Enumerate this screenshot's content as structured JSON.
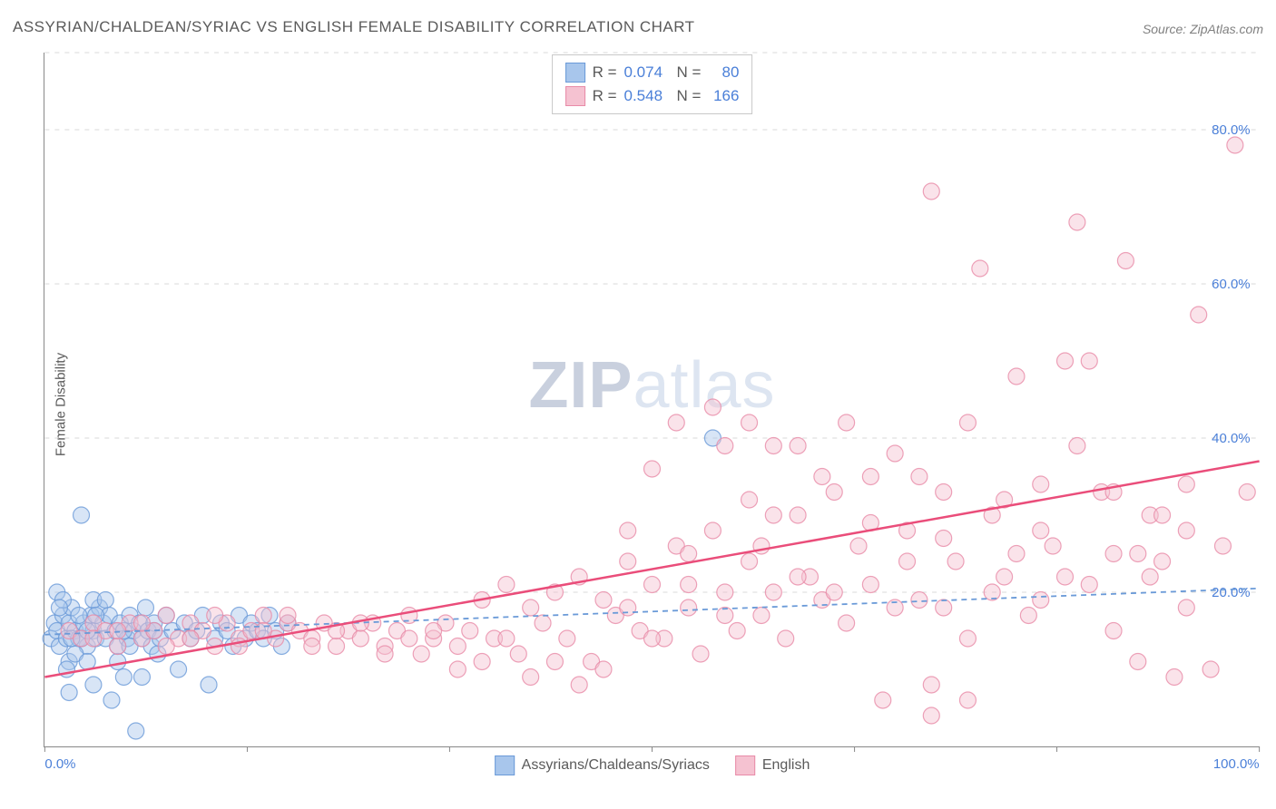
{
  "title": "ASSYRIAN/CHALDEAN/SYRIAC VS ENGLISH FEMALE DISABILITY CORRELATION CHART",
  "source": "Source: ZipAtlas.com",
  "y_axis_label": "Female Disability",
  "watermark": {
    "bold": "ZIP",
    "rest": "atlas"
  },
  "chart": {
    "type": "scatter",
    "xlim": [
      0,
      100
    ],
    "ylim": [
      0,
      90
    ],
    "x_ticks": [
      0,
      16.67,
      33.33,
      50,
      66.67,
      83.33,
      100
    ],
    "x_tick_labels": {
      "0": "0.0%",
      "100": "100.0%"
    },
    "y_gridlines": [
      20,
      40,
      60,
      80,
      90
    ],
    "y_tick_labels": {
      "20": "20.0%",
      "40": "40.0%",
      "60": "60.0%",
      "80": "80.0%"
    },
    "background_color": "#ffffff",
    "grid_color": "#d8d8d8",
    "axis_color": "#888888",
    "marker_radius": 9,
    "marker_opacity": 0.45,
    "series": [
      {
        "name": "Assyrians/Chaldeans/Syriacs",
        "fill": "#a8c6ec",
        "stroke": "#6a9ad8",
        "line_color": "#6a9ad8",
        "line_dash": "6,5",
        "line_width": 1.8,
        "r_value": "0.074",
        "n_value": "80",
        "regression": {
          "x1": 0,
          "y1": 14.5,
          "x2": 100,
          "y2": 20.5
        },
        "points": [
          [
            0.5,
            14
          ],
          [
            0.8,
            16
          ],
          [
            1,
            15
          ],
          [
            1.2,
            13
          ],
          [
            1.5,
            17
          ],
          [
            1.8,
            14
          ],
          [
            2,
            16
          ],
          [
            2.2,
            18
          ],
          [
            2.5,
            15
          ],
          [
            2.8,
            14
          ],
          [
            3,
            30
          ],
          [
            3.2,
            16
          ],
          [
            3.5,
            13
          ],
          [
            3.8,
            17
          ],
          [
            4,
            15
          ],
          [
            4.2,
            14
          ],
          [
            4.5,
            18
          ],
          [
            4.8,
            16
          ],
          [
            5,
            14
          ],
          [
            5.3,
            17
          ],
          [
            5.5,
            6
          ],
          [
            5.8,
            15
          ],
          [
            6,
            13
          ],
          [
            6.2,
            16
          ],
          [
            6.5,
            9
          ],
          [
            6.8,
            14
          ],
          [
            7,
            17
          ],
          [
            7.3,
            15
          ],
          [
            7.5,
            2
          ],
          [
            7.8,
            16
          ],
          [
            8,
            14
          ],
          [
            8.3,
            18
          ],
          [
            8.5,
            15
          ],
          [
            8.8,
            13
          ],
          [
            9,
            16
          ],
          [
            9.3,
            12
          ],
          [
            9.5,
            14
          ],
          [
            10,
            17
          ],
          [
            10.5,
            15
          ],
          [
            11,
            10
          ],
          [
            11.5,
            16
          ],
          [
            12,
            14
          ],
          [
            12.5,
            15
          ],
          [
            13,
            17
          ],
          [
            13.5,
            8
          ],
          [
            14,
            14
          ],
          [
            14.5,
            16
          ],
          [
            15,
            15
          ],
          [
            15.5,
            13
          ],
          [
            16,
            17
          ],
          [
            16.5,
            14
          ],
          [
            17,
            16
          ],
          [
            17.5,
            15
          ],
          [
            18,
            14
          ],
          [
            18.5,
            17
          ],
          [
            19,
            15
          ],
          [
            19.5,
            13
          ],
          [
            20,
            16
          ],
          [
            1,
            20
          ],
          [
            2,
            11
          ],
          [
            3,
            14
          ],
          [
            4,
            19
          ],
          [
            2.5,
            12
          ],
          [
            1.5,
            19
          ],
          [
            3.5,
            15
          ],
          [
            55,
            40
          ],
          [
            2,
            7
          ],
          [
            4,
            8
          ],
          [
            6,
            11
          ],
          [
            8,
            9
          ],
          [
            1.2,
            18
          ],
          [
            2.8,
            17
          ],
          [
            3.5,
            11
          ],
          [
            5,
            19
          ],
          [
            6.5,
            15
          ],
          [
            1.8,
            10
          ],
          [
            4.2,
            17
          ],
          [
            2.2,
            14
          ],
          [
            7,
            13
          ],
          [
            9,
            15
          ]
        ]
      },
      {
        "name": "English",
        "fill": "#f5c2d1",
        "stroke": "#e88ba8",
        "line_color": "#ea4d7a",
        "line_dash": "",
        "line_width": 2.5,
        "r_value": "0.548",
        "n_value": "166",
        "regression": {
          "x1": 0,
          "y1": 9,
          "x2": 100,
          "y2": 37
        },
        "points": [
          [
            2,
            15
          ],
          [
            3,
            14
          ],
          [
            4,
            16
          ],
          [
            5,
            15
          ],
          [
            6,
            13
          ],
          [
            7,
            16
          ],
          [
            8,
            14
          ],
          [
            9,
            15
          ],
          [
            10,
            17
          ],
          [
            11,
            14
          ],
          [
            12,
            16
          ],
          [
            13,
            15
          ],
          [
            14,
            13
          ],
          [
            15,
            16
          ],
          [
            16,
            14
          ],
          [
            17,
            15
          ],
          [
            18,
            17
          ],
          [
            19,
            14
          ],
          [
            20,
            16
          ],
          [
            21,
            15
          ],
          [
            22,
            14
          ],
          [
            23,
            16
          ],
          [
            24,
            13
          ],
          [
            25,
            15
          ],
          [
            26,
            14
          ],
          [
            27,
            16
          ],
          [
            28,
            13
          ],
          [
            29,
            15
          ],
          [
            30,
            17
          ],
          [
            31,
            12
          ],
          [
            32,
            14
          ],
          [
            33,
            16
          ],
          [
            34,
            13
          ],
          [
            35,
            15
          ],
          [
            36,
            19
          ],
          [
            37,
            14
          ],
          [
            38,
            21
          ],
          [
            39,
            12
          ],
          [
            40,
            18
          ],
          [
            41,
            16
          ],
          [
            42,
            20
          ],
          [
            43,
            14
          ],
          [
            44,
            22
          ],
          [
            45,
            11
          ],
          [
            46,
            19
          ],
          [
            47,
            17
          ],
          [
            48,
            24
          ],
          [
            49,
            15
          ],
          [
            50,
            21
          ],
          [
            51,
            14
          ],
          [
            52,
            26
          ],
          [
            53,
            18
          ],
          [
            54,
            12
          ],
          [
            55,
            28
          ],
          [
            56,
            20
          ],
          [
            57,
            15
          ],
          [
            58,
            24
          ],
          [
            59,
            17
          ],
          [
            60,
            30
          ],
          [
            61,
            14
          ],
          [
            62,
            39
          ],
          [
            63,
            22
          ],
          [
            64,
            19
          ],
          [
            65,
            33
          ],
          [
            66,
            16
          ],
          [
            67,
            26
          ],
          [
            68,
            21
          ],
          [
            69,
            6
          ],
          [
            70,
            38
          ],
          [
            71,
            28
          ],
          [
            72,
            19
          ],
          [
            73,
            4
          ],
          [
            74,
            33
          ],
          [
            75,
            24
          ],
          [
            76,
            14
          ],
          [
            77,
            62
          ],
          [
            78,
            30
          ],
          [
            79,
            22
          ],
          [
            80,
            48
          ],
          [
            81,
            17
          ],
          [
            82,
            34
          ],
          [
            83,
            26
          ],
          [
            84,
            50
          ],
          [
            85,
            68
          ],
          [
            86,
            21
          ],
          [
            87,
            33
          ],
          [
            88,
            25
          ],
          [
            89,
            63
          ],
          [
            90,
            11
          ],
          [
            91,
            30
          ],
          [
            92,
            24
          ],
          [
            93,
            9
          ],
          [
            94,
            34
          ],
          [
            95,
            56
          ],
          [
            96,
            10
          ],
          [
            97,
            26
          ],
          [
            98,
            78
          ],
          [
            99,
            33
          ],
          [
            73,
            72
          ],
          [
            52,
            42
          ],
          [
            55,
            44
          ],
          [
            48,
            28
          ],
          [
            50,
            36
          ],
          [
            53,
            25
          ],
          [
            56,
            39
          ],
          [
            58,
            32
          ],
          [
            60,
            20
          ],
          [
            62,
            22
          ],
          [
            64,
            35
          ],
          [
            66,
            42
          ],
          [
            68,
            29
          ],
          [
            70,
            18
          ],
          [
            72,
            35
          ],
          [
            74,
            27
          ],
          [
            76,
            42
          ],
          [
            78,
            20
          ],
          [
            80,
            25
          ],
          [
            82,
            28
          ],
          [
            84,
            22
          ],
          [
            86,
            50
          ],
          [
            88,
            15
          ],
          [
            90,
            25
          ],
          [
            92,
            30
          ],
          [
            94,
            18
          ],
          [
            58,
            42
          ],
          [
            60,
            39
          ],
          [
            46,
            10
          ],
          [
            44,
            8
          ],
          [
            42,
            11
          ],
          [
            40,
            9
          ],
          [
            38,
            14
          ],
          [
            36,
            11
          ],
          [
            34,
            10
          ],
          [
            32,
            15
          ],
          [
            30,
            14
          ],
          [
            28,
            12
          ],
          [
            26,
            16
          ],
          [
            24,
            15
          ],
          [
            22,
            13
          ],
          [
            20,
            17
          ],
          [
            18,
            15
          ],
          [
            16,
            13
          ],
          [
            14,
            17
          ],
          [
            12,
            14
          ],
          [
            10,
            13
          ],
          [
            8,
            16
          ],
          [
            6,
            15
          ],
          [
            4,
            14
          ],
          [
            73,
            8
          ],
          [
            76,
            6
          ],
          [
            79,
            32
          ],
          [
            82,
            19
          ],
          [
            85,
            39
          ],
          [
            88,
            33
          ],
          [
            91,
            22
          ],
          [
            94,
            28
          ],
          [
            48,
            18
          ],
          [
            50,
            14
          ],
          [
            53,
            21
          ],
          [
            56,
            17
          ],
          [
            59,
            26
          ],
          [
            62,
            30
          ],
          [
            65,
            20
          ],
          [
            68,
            35
          ],
          [
            71,
            24
          ],
          [
            74,
            18
          ]
        ]
      }
    ]
  },
  "legend_bottom": [
    {
      "label": "Assyrians/Chaldeans/Syriacs",
      "fill": "#a8c6ec",
      "stroke": "#6a9ad8"
    },
    {
      "label": "English",
      "fill": "#f5c2d1",
      "stroke": "#e88ba8"
    }
  ]
}
